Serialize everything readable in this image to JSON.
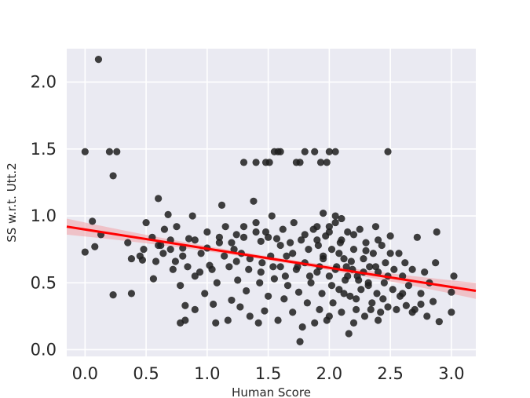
{
  "chart_data": {
    "type": "scatter",
    "title": "",
    "xlabel": "Human Score",
    "ylabel": "SS w.r.t. Utt.2",
    "xlim": [
      -0.15,
      3.2
    ],
    "ylim": [
      -0.05,
      2.25
    ],
    "xticks": [
      0.0,
      0.5,
      1.0,
      1.5,
      2.0,
      2.5,
      3.0
    ],
    "xtick_labels": [
      "0.0",
      "0.5",
      "1.0",
      "1.5",
      "2.0",
      "2.5",
      "3.0"
    ],
    "yticks": [
      0.0,
      0.5,
      1.0,
      1.5,
      2.0
    ],
    "ytick_labels": [
      "0.0",
      "0.5",
      "1.0",
      "1.5",
      "2.0"
    ],
    "grid": true,
    "background_color": "#eaeaf2",
    "point_color": "#1f1f1f",
    "regression_color": "#ff0000",
    "regression_band_color": "#f3a0a6",
    "regression": {
      "x": [
        -0.15,
        3.2
      ],
      "y": [
        0.92,
        0.44
      ],
      "ci_halfwidth_edge": 0.06,
      "ci_halfwidth_center": 0.015
    },
    "points": [
      [
        0.0,
        1.48
      ],
      [
        0.11,
        2.17
      ],
      [
        0.2,
        1.48
      ],
      [
        0.26,
        1.48
      ],
      [
        0.23,
        1.3
      ],
      [
        0.0,
        0.73
      ],
      [
        0.06,
        0.96
      ],
      [
        0.08,
        0.77
      ],
      [
        0.13,
        0.86
      ],
      [
        0.23,
        0.41
      ],
      [
        0.38,
        0.42
      ],
      [
        0.35,
        0.8
      ],
      [
        0.38,
        0.68
      ],
      [
        0.45,
        0.7
      ],
      [
        0.47,
        0.67
      ],
      [
        0.5,
        0.95
      ],
      [
        0.48,
        0.75
      ],
      [
        0.55,
        0.84
      ],
      [
        0.58,
        0.66
      ],
      [
        0.6,
        1.13
      ],
      [
        0.56,
        0.53
      ],
      [
        0.62,
        0.78
      ],
      [
        0.65,
        0.9
      ],
      [
        0.68,
        1.01
      ],
      [
        0.7,
        0.75
      ],
      [
        0.72,
        0.6
      ],
      [
        0.75,
        0.92
      ],
      [
        0.78,
        0.48
      ],
      [
        0.8,
        0.7
      ],
      [
        0.82,
        0.33
      ],
      [
        0.85,
        0.83
      ],
      [
        0.88,
        1.0
      ],
      [
        0.9,
        0.55
      ],
      [
        0.78,
        0.2
      ],
      [
        0.82,
        0.22
      ],
      [
        0.9,
        0.3
      ],
      [
        0.95,
        0.72
      ],
      [
        0.98,
        0.42
      ],
      [
        1.0,
        0.88
      ],
      [
        1.02,
        0.63
      ],
      [
        1.05,
        0.34
      ],
      [
        1.07,
        0.2
      ],
      [
        1.08,
        0.5
      ],
      [
        1.1,
        0.8
      ],
      [
        1.12,
        1.08
      ],
      [
        1.15,
        0.92
      ],
      [
        1.17,
        0.22
      ],
      [
        1.18,
        0.62
      ],
      [
        1.2,
        0.37
      ],
      [
        1.22,
        0.75
      ],
      [
        1.24,
        0.86
      ],
      [
        1.25,
        0.52
      ],
      [
        1.27,
        0.32
      ],
      [
        1.28,
        0.72
      ],
      [
        1.3,
        0.92
      ],
      [
        1.32,
        0.44
      ],
      [
        1.35,
        0.25
      ],
      [
        1.35,
        0.68
      ],
      [
        1.38,
        1.11
      ],
      [
        1.4,
        0.95
      ],
      [
        1.42,
        0.2
      ],
      [
        1.43,
        0.5
      ],
      [
        1.44,
        0.81
      ],
      [
        1.45,
        0.65
      ],
      [
        1.47,
        0.29
      ],
      [
        1.48,
        0.88
      ],
      [
        1.5,
        0.4
      ],
      [
        1.52,
        0.7
      ],
      [
        1.53,
        1.0
      ],
      [
        1.55,
        0.53
      ],
      [
        1.57,
        0.83
      ],
      [
        1.58,
        0.22
      ],
      [
        1.6,
        0.62
      ],
      [
        1.62,
        0.9
      ],
      [
        1.63,
        0.38
      ],
      [
        1.65,
        0.7
      ],
      [
        1.66,
        0.48
      ],
      [
        1.68,
        0.8
      ],
      [
        1.7,
        0.28
      ],
      [
        1.71,
        0.95
      ],
      [
        1.73,
        0.6
      ],
      [
        1.75,
        0.43
      ],
      [
        1.76,
        0.06
      ],
      [
        1.77,
        0.82
      ],
      [
        1.78,
        0.17
      ],
      [
        1.8,
        0.65
      ],
      [
        1.82,
        0.35
      ],
      [
        1.83,
        0.75
      ],
      [
        1.85,
        0.5
      ],
      [
        1.87,
        0.9
      ],
      [
        1.88,
        0.2
      ],
      [
        1.9,
        0.58
      ],
      [
        1.91,
        0.78
      ],
      [
        1.92,
        0.3
      ],
      [
        1.94,
        0.42
      ],
      [
        1.95,
        0.68
      ],
      [
        1.97,
        0.85
      ],
      [
        1.98,
        0.22
      ],
      [
        2.0,
        0.55
      ],
      [
        2.02,
        0.75
      ],
      [
        2.03,
        0.35
      ],
      [
        2.05,
        0.95
      ],
      [
        2.06,
        0.62
      ],
      [
        2.08,
        0.45
      ],
      [
        2.09,
        0.8
      ],
      [
        2.1,
        0.28
      ],
      [
        2.12,
        0.68
      ],
      [
        2.13,
        0.52
      ],
      [
        2.15,
        0.88
      ],
      [
        2.16,
        0.12
      ],
      [
        2.17,
        0.4
      ],
      [
        2.19,
        0.6
      ],
      [
        2.2,
        0.75
      ],
      [
        2.22,
        0.3
      ],
      [
        2.23,
        0.55
      ],
      [
        2.25,
        0.9
      ],
      [
        2.26,
        0.45
      ],
      [
        2.28,
        0.68
      ],
      [
        2.29,
        0.25
      ],
      [
        2.3,
        0.8
      ],
      [
        2.32,
        0.5
      ],
      [
        2.33,
        0.62
      ],
      [
        2.35,
        0.35
      ],
      [
        2.36,
        0.72
      ],
      [
        2.38,
        0.92
      ],
      [
        2.39,
        0.42
      ],
      [
        2.4,
        0.58
      ],
      [
        2.42,
        0.28
      ],
      [
        2.43,
        0.78
      ],
      [
        2.45,
        0.5
      ],
      [
        2.46,
        0.65
      ],
      [
        2.48,
        0.32
      ],
      [
        2.5,
        0.85
      ],
      [
        2.52,
        0.45
      ],
      [
        2.53,
        0.6
      ],
      [
        2.55,
        0.3
      ],
      [
        2.57,
        0.72
      ],
      [
        2.58,
        0.4
      ],
      [
        2.6,
        0.55
      ],
      [
        2.62,
        0.65
      ],
      [
        2.63,
        0.33
      ],
      [
        2.65,
        0.48
      ],
      [
        2.68,
        0.6
      ],
      [
        2.7,
        0.3
      ],
      [
        2.72,
        0.84
      ],
      [
        2.75,
        0.42
      ],
      [
        2.78,
        0.58
      ],
      [
        2.8,
        0.25
      ],
      [
        2.82,
        0.5
      ],
      [
        2.85,
        0.36
      ],
      [
        2.88,
        0.88
      ],
      [
        2.9,
        0.21
      ],
      [
        2.87,
        0.65
      ],
      [
        3.0,
        0.43
      ],
      [
        3.02,
        0.55
      ],
      [
        3.0,
        0.28
      ],
      [
        2.75,
        0.34
      ],
      [
        2.68,
        0.28
      ],
      [
        2.4,
        0.22
      ],
      [
        2.2,
        0.2
      ],
      [
        2.0,
        0.25
      ],
      [
        1.3,
        1.4
      ],
      [
        1.4,
        1.4
      ],
      [
        1.48,
        1.4
      ],
      [
        1.51,
        1.4
      ],
      [
        1.55,
        1.48
      ],
      [
        1.58,
        1.48
      ],
      [
        1.6,
        1.48
      ],
      [
        1.73,
        1.4
      ],
      [
        1.76,
        1.4
      ],
      [
        1.8,
        1.48
      ],
      [
        1.88,
        1.48
      ],
      [
        1.93,
        1.4
      ],
      [
        1.98,
        1.4
      ],
      [
        2.0,
        1.48
      ],
      [
        2.05,
        1.48
      ],
      [
        2.48,
        1.48
      ],
      [
        1.95,
        1.02
      ],
      [
        2.05,
        1.0
      ],
      [
        1.9,
        0.92
      ],
      [
        2.0,
        0.88
      ],
      [
        2.1,
        0.82
      ],
      [
        1.95,
        0.7
      ],
      [
        2.05,
        0.6
      ],
      [
        2.15,
        0.55
      ],
      [
        1.92,
        0.62
      ],
      [
        2.02,
        0.48
      ],
      [
        2.12,
        0.42
      ],
      [
        2.22,
        0.38
      ],
      [
        2.32,
        0.48
      ],
      [
        2.28,
        0.58
      ],
      [
        2.18,
        0.66
      ],
      [
        2.08,
        0.72
      ],
      [
        2.38,
        0.62
      ],
      [
        2.44,
        0.38
      ],
      [
        2.48,
        0.55
      ],
      [
        2.34,
        0.3
      ],
      [
        2.24,
        0.52
      ],
      [
        2.14,
        0.62
      ],
      [
        1.84,
        0.55
      ],
      [
        1.74,
        0.62
      ],
      [
        1.64,
        0.55
      ],
      [
        1.54,
        0.62
      ],
      [
        1.44,
        0.58
      ],
      [
        1.34,
        0.6
      ],
      [
        1.24,
        0.66
      ],
      [
        1.14,
        0.7
      ],
      [
        1.04,
        0.6
      ],
      [
        0.94,
        0.58
      ],
      [
        0.84,
        0.62
      ],
      [
        0.74,
        0.66
      ],
      [
        0.64,
        0.72
      ],
      [
        0.6,
        0.78
      ],
      [
        0.7,
        0.82
      ],
      [
        0.8,
        0.76
      ],
      [
        0.9,
        0.82
      ],
      [
        1.0,
        0.76
      ],
      [
        1.1,
        0.84
      ],
      [
        1.2,
        0.8
      ],
      [
        1.3,
        0.84
      ],
      [
        1.4,
        0.88
      ],
      [
        1.5,
        0.84
      ],
      [
        1.6,
        0.78
      ],
      [
        1.7,
        0.72
      ],
      [
        1.8,
        0.86
      ],
      [
        1.9,
        0.82
      ],
      [
        2.0,
        0.92
      ],
      [
        2.1,
        0.98
      ],
      [
        2.2,
        0.86
      ],
      [
        2.3,
        0.74
      ],
      [
        2.4,
        0.82
      ],
      [
        2.5,
        0.72
      ],
      [
        2.6,
        0.42
      ]
    ]
  }
}
